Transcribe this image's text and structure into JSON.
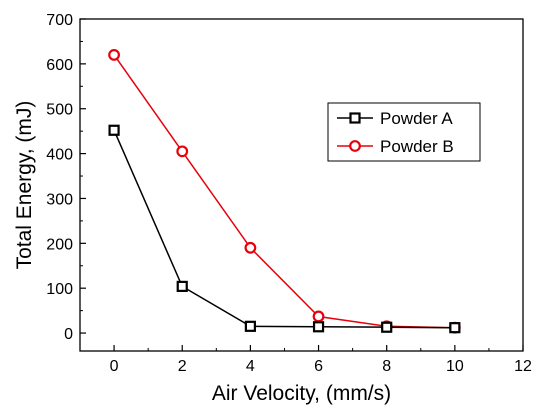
{
  "chart_data": {
    "type": "line",
    "title": "",
    "xlabel": "Air Velocity, (mm/s)",
    "ylabel": "Total Energy, (mJ)",
    "xlim": [
      -1,
      12
    ],
    "ylim": [
      -40,
      700
    ],
    "xticks": [
      0,
      2,
      4,
      6,
      8,
      10,
      12
    ],
    "yticks": [
      0,
      100,
      200,
      300,
      400,
      500,
      600,
      700
    ],
    "grid": false,
    "legend_position": "right",
    "series": [
      {
        "name": "Powder A",
        "color": "#000000",
        "marker": "square",
        "x": [
          0,
          2,
          4,
          6,
          8,
          10
        ],
        "y": [
          452,
          104,
          15,
          14,
          13,
          12
        ]
      },
      {
        "name": "Powder B",
        "color": "#e8000b",
        "marker": "circle",
        "x": [
          0,
          2,
          4,
          6,
          8,
          10
        ],
        "y": [
          620,
          405,
          190,
          37,
          15,
          12
        ]
      }
    ]
  }
}
